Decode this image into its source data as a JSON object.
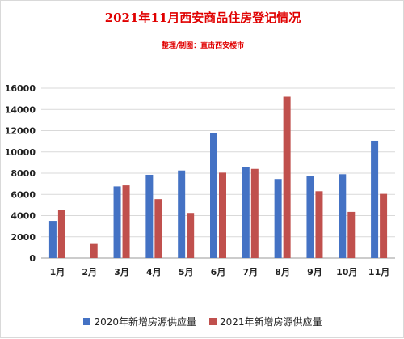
{
  "chart_data": {
    "type": "bar",
    "title": "2021年11月西安商品住房登记情况",
    "subtitle": "整理/制图：直击西安楼市",
    "categories": [
      "1月",
      "2月",
      "3月",
      "4月",
      "5月",
      "6月",
      "7月",
      "8月",
      "9月",
      "10月",
      "11月"
    ],
    "series": [
      {
        "name": "2020年新增房源供应量",
        "color": "#4472c4",
        "values": [
          3500,
          0,
          6750,
          7850,
          8250,
          11750,
          8600,
          7450,
          7750,
          7900,
          11050
        ]
      },
      {
        "name": "2021年新增房源供应量",
        "color": "#c0504d",
        "values": [
          4550,
          1400,
          6850,
          5550,
          4250,
          8050,
          8400,
          15200,
          6300,
          4350,
          6050
        ]
      }
    ],
    "ylim": [
      0,
      16000
    ],
    "yticks": [
      0,
      2000,
      4000,
      6000,
      8000,
      10000,
      12000,
      14000,
      16000
    ],
    "grid": true,
    "legend_position": "bottom"
  }
}
